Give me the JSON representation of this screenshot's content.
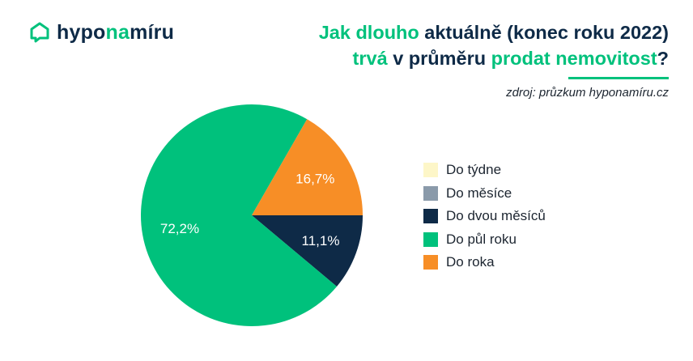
{
  "brand": {
    "part1": "hypo",
    "part2": "na",
    "part3": "míru",
    "icon": "house-chat-icon",
    "colors": {
      "dark": "#0e2a47",
      "green": "#00c17c"
    }
  },
  "header": {
    "title_line1_green": "Jak dlouho",
    "title_line1_dark": "aktuálně (konec roku 2022)",
    "title_line2_green1": "trvá",
    "title_line2_dark1": "v průměru",
    "title_line2_green2": "prodat nemovitost",
    "title_line2_dark2": "?",
    "source": "zdroj: průzkum hyponamíru.cz"
  },
  "chart_data": {
    "type": "pie",
    "title": "Jak dlouho aktuálně (konec roku 2022) trvá v průměru prodat nemovitost?",
    "categories": [
      "Do týdne",
      "Do měsíce",
      "Do dvou měsíců",
      "Do půl roku",
      "Do roka"
    ],
    "values": [
      0,
      0,
      11.1,
      72.2,
      16.7
    ],
    "value_labels": [
      "",
      "",
      "11,1%",
      "72,2%",
      "16,7%"
    ],
    "colors": [
      "#fdf6c8",
      "#8a9aaa",
      "#0e2a47",
      "#00c17c",
      "#f78e26"
    ],
    "start_angle_deg": 90,
    "direction": "clockwise",
    "legend": "right"
  }
}
